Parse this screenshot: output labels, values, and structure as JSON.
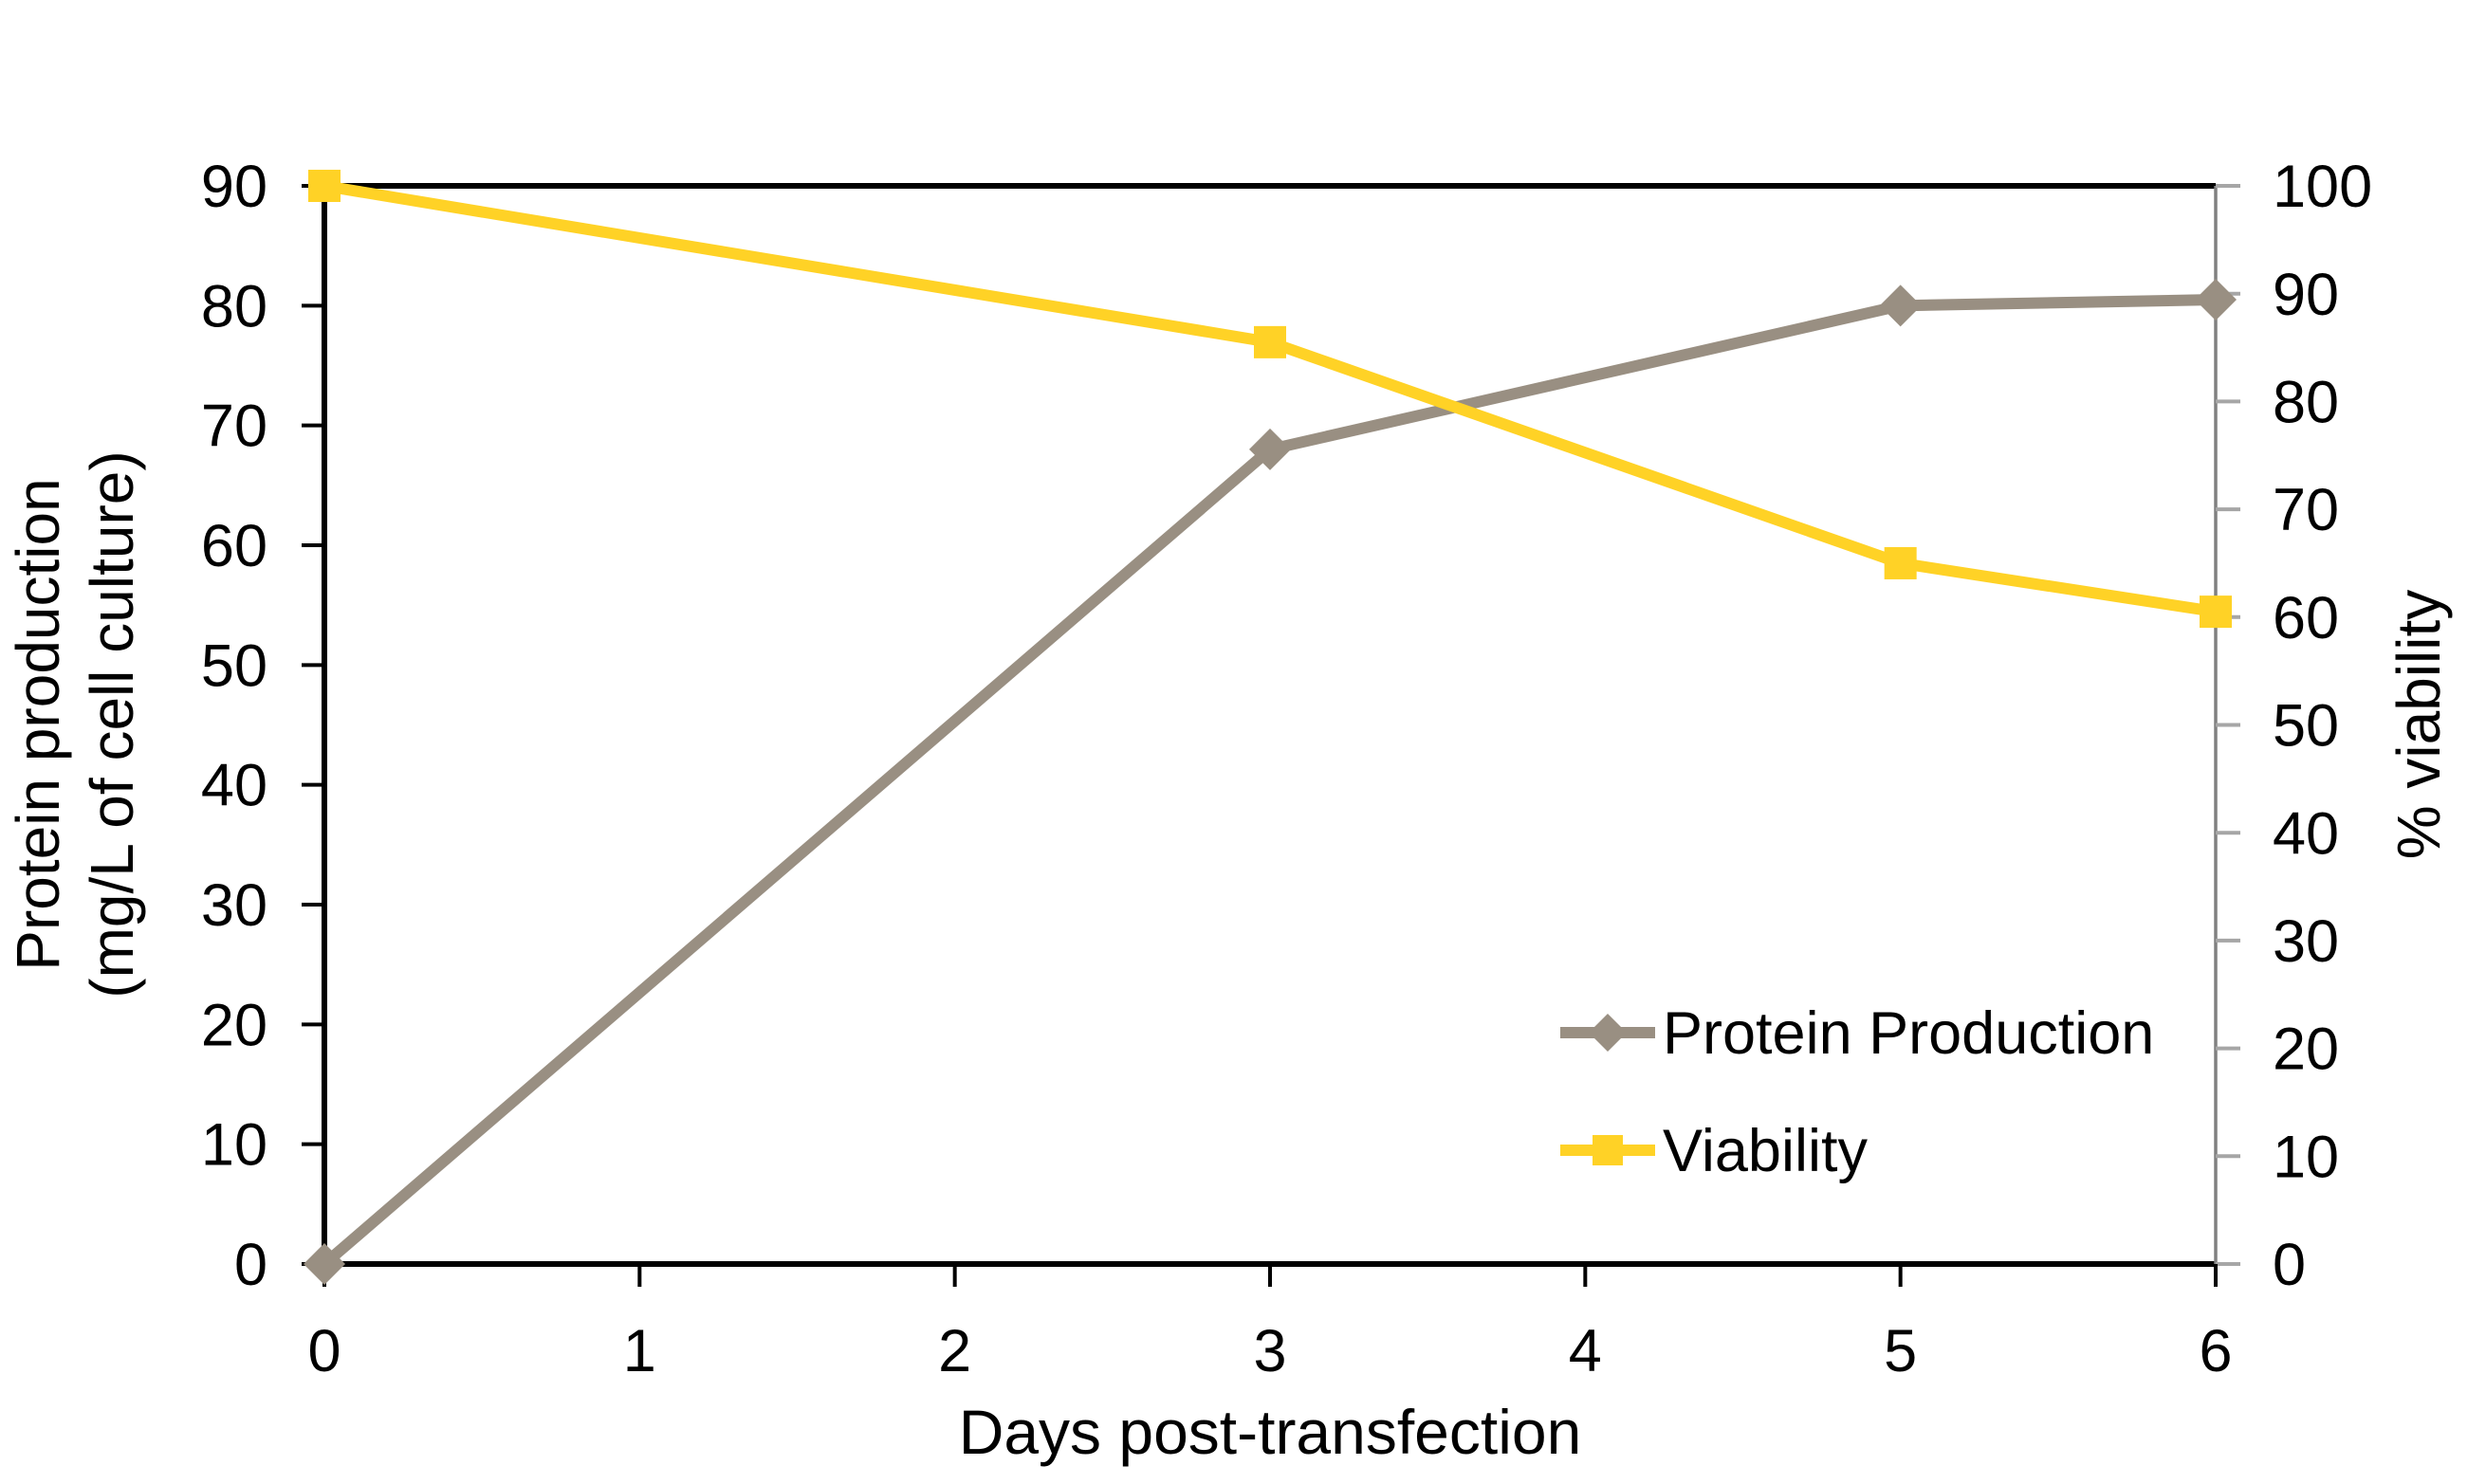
{
  "chart_data": {
    "type": "line",
    "title": "",
    "grid": "off",
    "background": "#FFFFFF",
    "x_axis": {
      "label": "Days post-transfection",
      "range": [
        0,
        6
      ],
      "ticks": [
        0,
        1,
        2,
        3,
        4,
        5,
        6
      ]
    },
    "y_left": {
      "title_lines": [
        "Protein production",
        "(mg/L of cell culture)"
      ],
      "range": [
        0,
        90
      ],
      "ticks": [
        0,
        10,
        20,
        30,
        40,
        50,
        60,
        70,
        80,
        90
      ]
    },
    "y_right": {
      "label": "% viability",
      "range": [
        0,
        100
      ],
      "ticks": [
        0,
        10,
        20,
        30,
        40,
        50,
        60,
        70,
        80,
        90,
        100
      ]
    },
    "x": [
      0,
      3,
      5,
      6
    ],
    "series": [
      {
        "name": "Protein Production",
        "axis": "left",
        "marker": "diamond",
        "color": "#998F82",
        "values": [
          0,
          68,
          80,
          80.5
        ]
      },
      {
        "name": "Viability",
        "axis": "right",
        "marker": "square",
        "color": "#FFD226",
        "values": [
          100,
          85.5,
          65,
          60.5
        ]
      }
    ],
    "legend": {
      "position": "inside lower right",
      "items": [
        {
          "label": "Protein Production"
        },
        {
          "label": "Viability"
        }
      ]
    },
    "colors": {
      "axis_line": "#000000",
      "tick_mark": "#000000",
      "right_axis_line": "#808080",
      "right_axis_tick": "#A6A6A6",
      "text": "#000000",
      "background": "#FFFFFF"
    }
  }
}
